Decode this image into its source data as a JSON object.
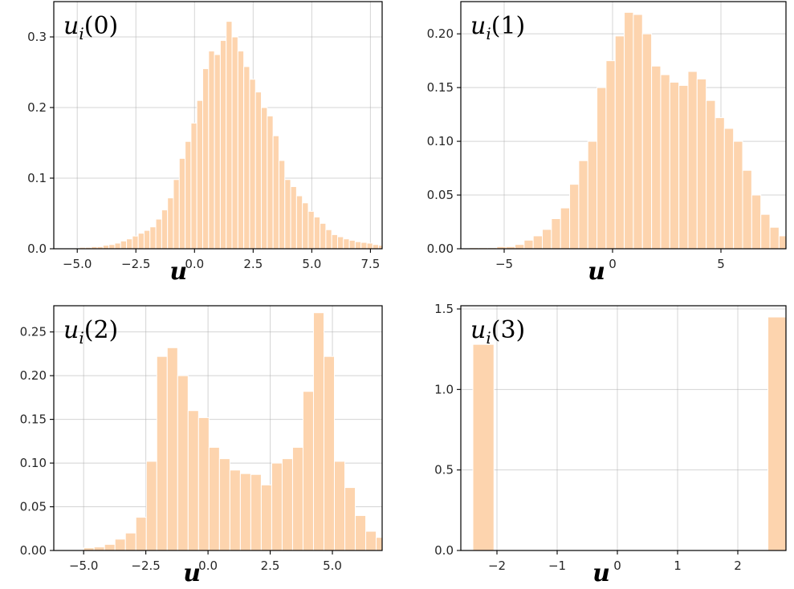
{
  "colors": {
    "bar": "#fdd4ae",
    "grid": "#b0b0b0",
    "axis": "#000000"
  },
  "chart_data": [
    {
      "type": "bar",
      "panel_label": "u_i(0)",
      "xlabel": "u",
      "xlim": [
        -6.0,
        8.0
      ],
      "ylim": [
        0,
        0.35
      ],
      "xticks": [
        -5.0,
        -2.5,
        0.0,
        2.5,
        5.0,
        7.5
      ],
      "xtick_labels": [
        "−5.0",
        "−2.5",
        "0.0",
        "2.5",
        "5.0",
        "7.5"
      ],
      "yticks": [
        0.0,
        0.1,
        0.2,
        0.3
      ],
      "ytick_labels": [
        "0.0",
        "0.1",
        "0.2",
        "0.3"
      ],
      "grid": true,
      "bin_start": -5.4,
      "bin_width": 0.25,
      "values": [
        0.001,
        0.001,
        0.002,
        0.002,
        0.003,
        0.003,
        0.005,
        0.006,
        0.008,
        0.011,
        0.014,
        0.018,
        0.022,
        0.026,
        0.031,
        0.042,
        0.055,
        0.072,
        0.098,
        0.128,
        0.152,
        0.178,
        0.21,
        0.255,
        0.28,
        0.275,
        0.295,
        0.322,
        0.3,
        0.28,
        0.258,
        0.24,
        0.222,
        0.2,
        0.188,
        0.16,
        0.125,
        0.098,
        0.088,
        0.075,
        0.065,
        0.053,
        0.045,
        0.036,
        0.027,
        0.02,
        0.017,
        0.014,
        0.012,
        0.01,
        0.009,
        0.008,
        0.006,
        0.005,
        0.004,
        0.003,
        0.002,
        0.001,
        0.001
      ]
    },
    {
      "type": "bar",
      "panel_label": "u_i(1)",
      "xlabel": "u",
      "xlim": [
        -7.0,
        8.0
      ],
      "ylim": [
        0,
        0.23
      ],
      "xticks": [
        -5,
        0,
        5
      ],
      "xtick_labels": [
        "−5",
        "0",
        "5"
      ],
      "yticks": [
        0.0,
        0.05,
        0.1,
        0.15,
        0.2
      ],
      "ytick_labels": [
        "0.00",
        "0.05",
        "0.10",
        "0.15",
        "0.20"
      ],
      "grid": true,
      "bin_start": -6.6,
      "bin_width": 0.42,
      "values": [
        0.001,
        0.001,
        0.001,
        0.002,
        0.002,
        0.004,
        0.008,
        0.012,
        0.018,
        0.028,
        0.038,
        0.06,
        0.082,
        0.1,
        0.15,
        0.175,
        0.198,
        0.22,
        0.218,
        0.2,
        0.17,
        0.162,
        0.155,
        0.152,
        0.165,
        0.158,
        0.138,
        0.122,
        0.112,
        0.1,
        0.073,
        0.05,
        0.032,
        0.02,
        0.012,
        0.007,
        0.004,
        0.002,
        0.001
      ]
    },
    {
      "type": "bar",
      "panel_label": "u_i(2)",
      "xlabel": "u",
      "xlim": [
        -6.2,
        7.0
      ],
      "ylim": [
        0,
        0.28
      ],
      "xticks": [
        -5.0,
        -2.5,
        0.0,
        2.5,
        5.0
      ],
      "xtick_labels": [
        "−5.0",
        "−2.5",
        "0.0",
        "2.5",
        "5.0"
      ],
      "yticks": [
        0.0,
        0.05,
        0.1,
        0.15,
        0.2,
        0.25
      ],
      "ytick_labels": [
        "0.00",
        "0.05",
        "0.10",
        "0.15",
        "0.20",
        "0.25"
      ],
      "grid": true,
      "bin_start": -5.0,
      "bin_width": 0.42,
      "values": [
        0.003,
        0.004,
        0.007,
        0.013,
        0.02,
        0.038,
        0.102,
        0.222,
        0.232,
        0.2,
        0.16,
        0.152,
        0.118,
        0.105,
        0.092,
        0.088,
        0.087,
        0.075,
        0.1,
        0.105,
        0.118,
        0.182,
        0.272,
        0.222,
        0.102,
        0.072,
        0.04,
        0.022,
        0.015,
        0.008,
        0.005,
        0.003
      ]
    },
    {
      "type": "bar",
      "panel_label": "u_i(3)",
      "xlabel": "u",
      "xlim": [
        -2.6,
        2.8
      ],
      "ylim": [
        0,
        1.52
      ],
      "xticks": [
        -2,
        -1,
        0,
        1,
        2
      ],
      "xtick_labels": [
        "−2",
        "−1",
        "0",
        "1",
        "2"
      ],
      "yticks": [
        0.0,
        0.5,
        1.0,
        1.5
      ],
      "ytick_labels": [
        "0.0",
        "0.5",
        "1.0",
        "1.5"
      ],
      "grid": true,
      "bin_start": -2.4,
      "bin_width": 0.35,
      "values": [
        1.28,
        0,
        0,
        0,
        0,
        0,
        0,
        0,
        0,
        0,
        0,
        0,
        0,
        0,
        1.45
      ]
    }
  ]
}
